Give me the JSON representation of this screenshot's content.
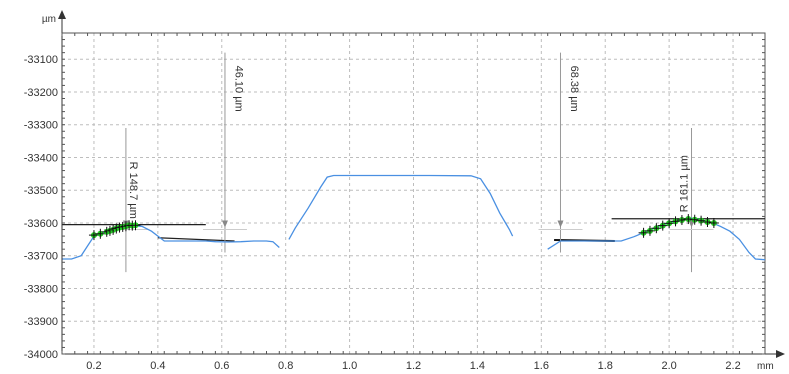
{
  "chart_data": {
    "type": "line",
    "title": "",
    "xlabel": "",
    "ylabel": "",
    "x_unit": "mm",
    "y_unit": "µm",
    "xlim": [
      0.1,
      2.3
    ],
    "ylim": [
      -34000,
      -33020
    ],
    "grid": true,
    "x_ticks": [
      0.2,
      0.4,
      0.6,
      0.8,
      1.0,
      1.2,
      1.4,
      1.6,
      1.8,
      2.0,
      2.2
    ],
    "x_tick_labels": [
      "0.2",
      "0.4",
      "0.6",
      "0.8",
      "1.0",
      "1.2",
      "1.4",
      "1.6",
      "1.8",
      "2.0",
      "2.2"
    ],
    "y_ticks": [
      -34000,
      -33900,
      -33800,
      -33700,
      -33600,
      -33500,
      -33400,
      -33300,
      -33200,
      -33100
    ],
    "y_tick_labels": [
      "-34000",
      "-33900",
      "-33800",
      "-33700",
      "-33600",
      "-33500",
      "-33400",
      "-33300",
      "-33200",
      "-33100"
    ],
    "series": [
      {
        "color": "#4a90e2",
        "segments": [
          [
            [
              0.1,
              -33710
            ],
            [
              0.13,
              -33710
            ],
            [
              0.16,
              -33700
            ],
            [
              0.18,
              -33670
            ],
            [
              0.2,
              -33640
            ],
            [
              0.24,
              -33625
            ],
            [
              0.28,
              -33612
            ],
            [
              0.32,
              -33608
            ],
            [
              0.35,
              -33610
            ],
            [
              0.38,
              -33625
            ],
            [
              0.4,
              -33640
            ],
            [
              0.42,
              -33655
            ],
            [
              0.46,
              -33655
            ],
            [
              0.5,
              -33655
            ],
            [
              0.55,
              -33655
            ],
            [
              0.58,
              -33657
            ],
            [
              0.62,
              -33658
            ],
            [
              0.66,
              -33657
            ],
            [
              0.7,
              -33655
            ],
            [
              0.74,
              -33655
            ],
            [
              0.76,
              -33657
            ],
            [
              0.78,
              -33675
            ]
          ],
          [
            [
              0.81,
              -33650
            ],
            [
              0.83,
              -33615
            ],
            [
              0.87,
              -33555
            ],
            [
              0.91,
              -33490
            ],
            [
              0.93,
              -33460
            ],
            [
              0.95,
              -33455
            ],
            [
              1.1,
              -33455
            ],
            [
              1.25,
              -33455
            ],
            [
              1.38,
              -33456
            ],
            [
              1.41,
              -33465
            ],
            [
              1.44,
              -33510
            ],
            [
              1.47,
              -33570
            ],
            [
              1.5,
              -33620
            ],
            [
              1.51,
              -33640
            ]
          ],
          [
            [
              1.62,
              -33680
            ],
            [
              1.66,
              -33655
            ],
            [
              1.72,
              -33655
            ],
            [
              1.8,
              -33655
            ],
            [
              1.85,
              -33655
            ],
            [
              1.89,
              -33642
            ],
            [
              1.93,
              -33625
            ],
            [
              1.98,
              -33605
            ],
            [
              2.03,
              -33592
            ],
            [
              2.07,
              -33585
            ],
            [
              2.1,
              -33590
            ],
            [
              2.13,
              -33598
            ],
            [
              2.16,
              -33610
            ],
            [
              2.19,
              -33625
            ],
            [
              2.22,
              -33650
            ],
            [
              2.25,
              -33690
            ],
            [
              2.27,
              -33710
            ],
            [
              2.3,
              -33712
            ]
          ]
        ]
      }
    ],
    "fit_points": [
      {
        "color": "#22cc22",
        "points": [
          [
            0.2,
            -33637
          ],
          [
            0.22,
            -33633
          ],
          [
            0.24,
            -33627
          ],
          [
            0.25,
            -33624
          ],
          [
            0.26,
            -33621
          ],
          [
            0.27,
            -33617
          ],
          [
            0.28,
            -33614
          ],
          [
            0.29,
            -33612
          ],
          [
            0.3,
            -33610
          ],
          [
            0.31,
            -33607
          ],
          [
            0.32,
            -33608
          ],
          [
            0.33,
            -33607
          ]
        ]
      },
      {
        "color": "#22cc22",
        "points": [
          [
            1.92,
            -33630
          ],
          [
            1.94,
            -33624
          ],
          [
            1.96,
            -33616
          ],
          [
            1.98,
            -33608
          ],
          [
            2.0,
            -33601
          ],
          [
            2.02,
            -33595
          ],
          [
            2.04,
            -33591
          ],
          [
            2.06,
            -33588
          ],
          [
            2.08,
            -33590
          ],
          [
            2.1,
            -33593
          ],
          [
            2.12,
            -33597
          ],
          [
            2.14,
            -33600
          ]
        ]
      }
    ],
    "reference_lines": [
      {
        "from": [
          0.1,
          -33605
        ],
        "to": [
          0.55,
          -33605
        ],
        "color": "#222222",
        "width": 1.2
      },
      {
        "from": [
          0.4,
          -33645
        ],
        "to": [
          0.64,
          -33655
        ],
        "color": "#222222",
        "width": 1.2
      },
      {
        "from": [
          1.64,
          -33652
        ],
        "to": [
          1.83,
          -33655
        ],
        "color": "#111111",
        "width": 2
      },
      {
        "from": [
          1.82,
          -33587
        ],
        "to": [
          2.3,
          -33587
        ],
        "color": "#222222",
        "width": 1.2
      }
    ],
    "annotations": [
      {
        "text": "R 148.7 µm",
        "x": 0.3,
        "y": -33500,
        "rotate": 90
      },
      {
        "text": "46.10 µm",
        "x": 0.63,
        "y": -33190,
        "rotate": 90
      },
      {
        "text": "68.38 µm",
        "x": 1.68,
        "y": -33190,
        "rotate": 90
      },
      {
        "text": "R 161.1 µm",
        "x": 2.07,
        "y": -33480,
        "rotate": -90
      }
    ],
    "markers": [
      {
        "x": 0.3,
        "y1": -33310,
        "y2": -33750
      },
      {
        "x": 0.61,
        "y1": -33080,
        "y2": -33690
      },
      {
        "x": 1.66,
        "y1": -33080,
        "y2": -33690
      },
      {
        "x": 2.07,
        "y1": -33310,
        "y2": -33750
      }
    ]
  }
}
